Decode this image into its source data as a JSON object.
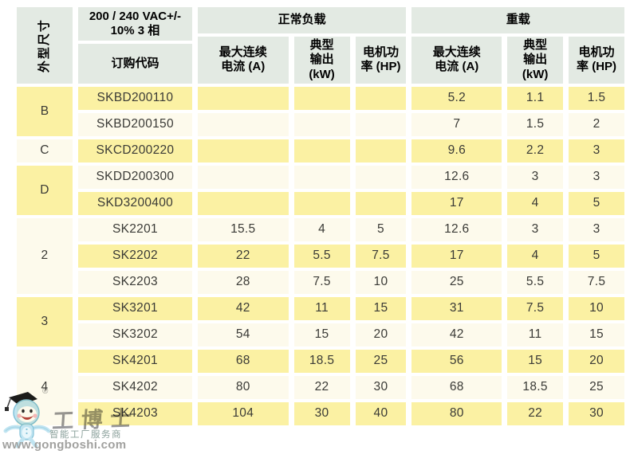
{
  "colors": {
    "header_bg": "#e3eae3",
    "row_yellow": "#fbf1a3",
    "row_cream": "#fdfaec"
  },
  "header": {
    "size_col": "外型尺寸",
    "voltage": "200 / 240 VAC+/-\n10% 3 相",
    "order_code": "订购代码",
    "normal_load": "正常负载",
    "heavy_load": "重载",
    "sub_current": "最大连续\n电流 (A)",
    "sub_output": "典型\n输出\n(kW)",
    "sub_power": "电机功\n率 (HP)"
  },
  "table": {
    "groups": [
      {
        "size": "B",
        "rows": [
          {
            "code": "SKBD200110",
            "normal": [
              "",
              "",
              ""
            ],
            "heavy": [
              "5.2",
              "1.1",
              "1.5"
            ]
          },
          {
            "code": "SKBD200150",
            "normal": [
              "",
              "",
              ""
            ],
            "heavy": [
              "7",
              "1.5",
              "2"
            ]
          }
        ]
      },
      {
        "size": "C",
        "rows": [
          {
            "code": "SKCD200220",
            "normal": [
              "",
              "",
              ""
            ],
            "heavy": [
              "9.6",
              "2.2",
              "3"
            ]
          }
        ]
      },
      {
        "size": "D",
        "rows": [
          {
            "code": "SKDD200300",
            "normal": [
              "",
              "",
              ""
            ],
            "heavy": [
              "12.6",
              "3",
              "3"
            ]
          },
          {
            "code": "SKD3200400",
            "normal": [
              "",
              "",
              ""
            ],
            "heavy": [
              "17",
              "4",
              "5"
            ]
          }
        ]
      },
      {
        "size": "2",
        "rows": [
          {
            "code": "SK2201",
            "normal": [
              "15.5",
              "4",
              "5"
            ],
            "heavy": [
              "12.6",
              "3",
              "3"
            ]
          },
          {
            "code": "SK2202",
            "normal": [
              "22",
              "5.5",
              "7.5"
            ],
            "heavy": [
              "17",
              "4",
              "5"
            ]
          },
          {
            "code": "SK2203",
            "normal": [
              "28",
              "7.5",
              "10"
            ],
            "heavy": [
              "25",
              "5.5",
              "7.5"
            ]
          }
        ]
      },
      {
        "size": "3",
        "rows": [
          {
            "code": "SK3201",
            "normal": [
              "42",
              "11",
              "15"
            ],
            "heavy": [
              "31",
              "7.5",
              "10"
            ]
          },
          {
            "code": "SK3202",
            "normal": [
              "54",
              "15",
              "20"
            ],
            "heavy": [
              "42",
              "11",
              "15"
            ]
          }
        ]
      },
      {
        "size": "4",
        "rows": [
          {
            "code": "SK4201",
            "normal": [
              "68",
              "18.5",
              "25"
            ],
            "heavy": [
              "56",
              "15",
              "20"
            ]
          },
          {
            "code": "SK4202",
            "normal": [
              "80",
              "22",
              "30"
            ],
            "heavy": [
              "68",
              "18.5",
              "25"
            ]
          },
          {
            "code": "SK4203",
            "normal": [
              "104",
              "30",
              "40"
            ],
            "heavy": [
              "80",
              "22",
              "30"
            ]
          }
        ]
      }
    ]
  },
  "watermark": {
    "brand": "工博士",
    "registered": "®",
    "tagline": "智能工厂服务商",
    "url": "www.gongboshi.com"
  }
}
